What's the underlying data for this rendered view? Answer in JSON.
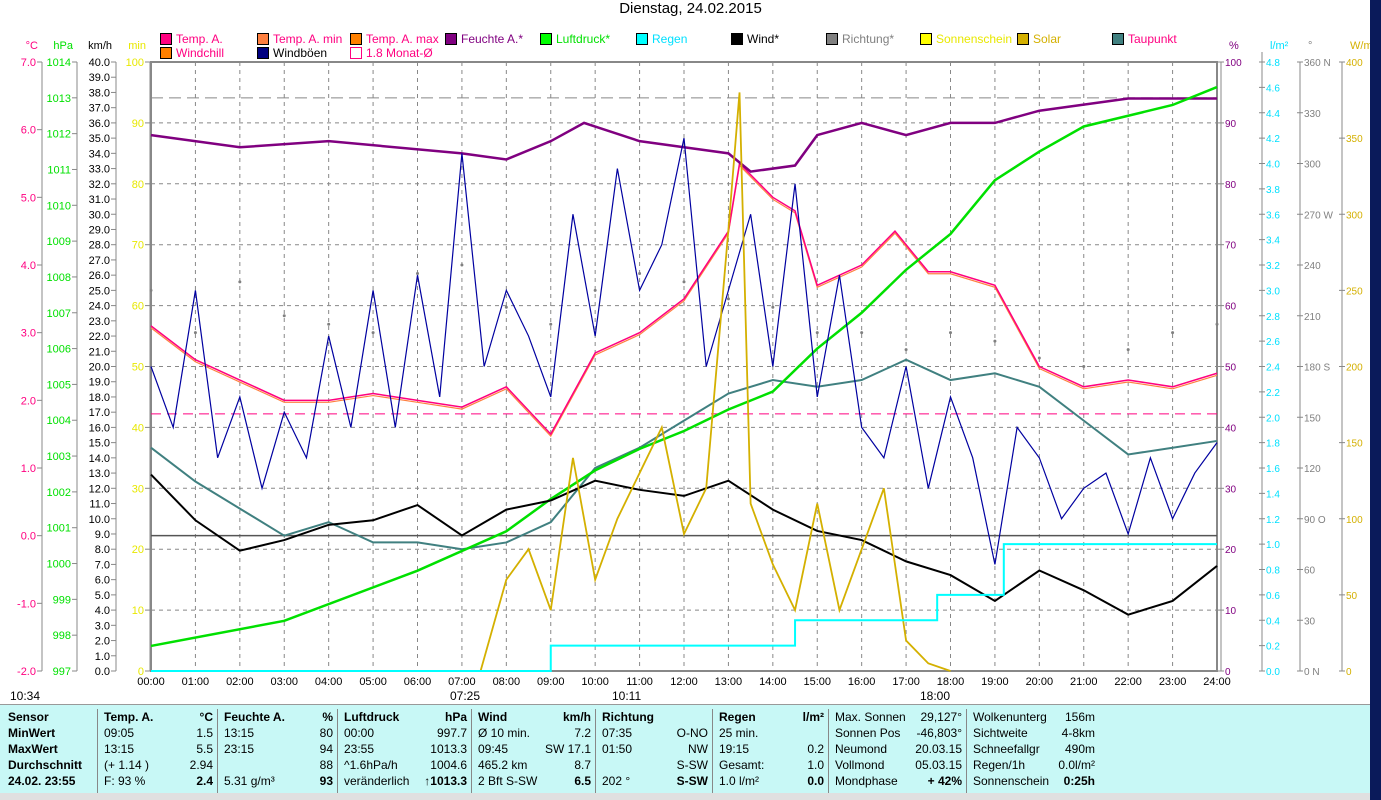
{
  "title": "Dienstag, 24.02.2015",
  "legend": [
    {
      "label": "Temp. A.",
      "color": "#ff0080",
      "text": "#ff0080"
    },
    {
      "label": "Temp. A. min",
      "color": "#ff8040",
      "text": "#ff0080"
    },
    {
      "label": "Temp. A. max",
      "color": "#ff8000",
      "text": "#ff0080"
    },
    {
      "label": "Feuchte A.*",
      "color": "#800080",
      "text": "#800080"
    },
    {
      "label": "Luftdruck*",
      "color": "#00ff00",
      "text": "#00e000"
    },
    {
      "label": "Regen",
      "color": "#00ffff",
      "text": "#00e0ff"
    },
    {
      "label": "Wind*",
      "color": "#000000",
      "text": "#000"
    },
    {
      "label": "Richtung*",
      "color": "#808080",
      "text": "#808080"
    },
    {
      "label": "Sonnenschein",
      "color": "#ffff00",
      "text": "#e8e800"
    },
    {
      "label": "Solar",
      "color": "#d4b000",
      "text": "#d4b000"
    },
    {
      "label": "Taupunkt",
      "color": "#408080",
      "text": "#ff0080"
    },
    {
      "label": "Windchill",
      "color": "#ff8000",
      "text": "#ff0080"
    },
    {
      "label": "Windböen",
      "color": "#000080",
      "text": "#000"
    },
    {
      "label": "1.8 Monat-Ø",
      "color": "#ff0080",
      "text": "#ff0080"
    }
  ],
  "axes": {
    "left": [
      {
        "unit": "°C",
        "color": "#ff0080",
        "min": -2,
        "max": 7,
        "step": 1,
        "dec": 1
      },
      {
        "unit": "hPa",
        "color": "#00e000",
        "min": 997,
        "max": 1014,
        "step": 1,
        "dec": 0
      },
      {
        "unit": "km/h",
        "color": "#000",
        "min": 0,
        "max": 40,
        "step": 1,
        "dec": 1
      },
      {
        "unit": "min",
        "color": "#e8e800",
        "min": 0,
        "max": 100,
        "step": 10,
        "dec": 0
      }
    ],
    "right": [
      {
        "unit": "%",
        "color": "#800080",
        "min": 0,
        "max": 100,
        "step": 10,
        "dec": 0
      },
      {
        "unit": "l/m²",
        "color": "#00e0ff",
        "min": 0,
        "max": 4.8,
        "step": 0.2,
        "dec": 1
      },
      {
        "unit": "°",
        "color": "#808080",
        "min": 0,
        "max": 360,
        "step": 30,
        "dec": 0,
        "compass": {
          "0": "N",
          "90": "O",
          "180": "S",
          "270": "W",
          "360": "N"
        }
      },
      {
        "unit": "W/m²",
        "color": "#d4b000",
        "min": 0,
        "max": 400,
        "step": 50,
        "dec": 0
      }
    ]
  },
  "x_ticks": [
    "00:00",
    "01:00",
    "02:00",
    "03:00",
    "04:00",
    "05:00",
    "06:00",
    "07:00",
    "08:00",
    "09:00",
    "10:00",
    "11:00",
    "12:00",
    "13:00",
    "14:00",
    "15:00",
    "16:00",
    "17:00",
    "18:00",
    "19:00",
    "20:00",
    "21:00",
    "22:00",
    "23:00",
    "24:00"
  ],
  "markers": {
    "left_time": "10:34",
    "sunrise": "07:25",
    "noon": "10:11",
    "sunset": "18:00"
  },
  "chart_data": {
    "type": "line",
    "xlabel": "Uhrzeit",
    "xlim": [
      0,
      24
    ],
    "reference_lines": {
      "temp_month_avg": 1.8,
      "pressure_ref": 1013,
      "zero_temp": 0
    },
    "series": [
      {
        "name": "Temp. A.",
        "axis": "°C",
        "x": [
          0,
          1,
          2,
          3,
          4,
          5,
          6,
          7,
          8,
          9,
          10,
          11,
          12,
          13,
          13.25,
          14,
          14.5,
          15,
          16,
          16.75,
          17.5,
          18,
          19,
          20,
          21,
          22,
          23,
          24
        ],
        "y": [
          3.1,
          2.6,
          2.3,
          2.0,
          2.0,
          2.1,
          2.0,
          1.9,
          2.2,
          1.5,
          2.7,
          3.0,
          3.5,
          4.5,
          5.5,
          5.0,
          4.8,
          3.7,
          4.0,
          4.5,
          3.9,
          3.9,
          3.7,
          2.5,
          2.2,
          2.3,
          2.2,
          2.4
        ]
      },
      {
        "name": "Taupunkt",
        "axis": "°C",
        "x": [
          0,
          1,
          2,
          3,
          4,
          5,
          6,
          7,
          8,
          9,
          10,
          11,
          12,
          13,
          14,
          15,
          16,
          17,
          18,
          19,
          20,
          21,
          22,
          23,
          24
        ],
        "y": [
          1.3,
          0.8,
          0.4,
          0.0,
          0.2,
          -0.1,
          -0.1,
          -0.2,
          -0.1,
          0.2,
          1.0,
          1.3,
          1.7,
          2.1,
          2.3,
          2.2,
          2.3,
          2.6,
          2.3,
          2.4,
          2.2,
          1.7,
          1.2,
          1.3,
          1.4
        ]
      },
      {
        "name": "Feuchte A.",
        "axis": "%",
        "x": [
          0,
          2,
          4,
          7,
          8,
          9,
          9.75,
          11,
          12,
          13,
          13.5,
          14.5,
          15,
          16,
          17,
          18,
          19,
          20,
          21,
          22,
          24
        ],
        "y": [
          88,
          86,
          87,
          85,
          84,
          87,
          90,
          87,
          86,
          85,
          82,
          83,
          88,
          90,
          88,
          90,
          90,
          92,
          93,
          94,
          94
        ]
      },
      {
        "name": "Luftdruck",
        "axis": "hPa",
        "x": [
          0,
          3,
          6,
          8,
          9,
          10,
          11,
          12,
          13,
          14,
          15,
          16,
          17,
          18,
          19,
          20,
          21,
          22,
          23,
          24
        ],
        "y": [
          997.7,
          998.4,
          999.8,
          1000.9,
          1001.8,
          1002.6,
          1003.2,
          1003.7,
          1004.3,
          1004.8,
          1006.0,
          1007.0,
          1008.2,
          1009.2,
          1010.7,
          1011.5,
          1012.2,
          1012.5,
          1012.8,
          1013.3
        ]
      },
      {
        "name": "Wind",
        "axis": "km/h",
        "x": [
          0,
          1,
          2,
          3,
          4,
          5,
          6,
          7,
          8,
          9,
          10,
          11,
          12,
          13,
          14,
          15,
          16,
          17,
          18,
          19,
          20,
          21,
          22,
          23,
          24
        ],
        "y": [
          12.9,
          9.9,
          7.9,
          8.6,
          9.6,
          9.9,
          10.9,
          8.9,
          10.6,
          11.2,
          12.5,
          11.9,
          11.5,
          12.5,
          10.6,
          9.2,
          8.6,
          7.2,
          6.3,
          4.6,
          6.6,
          5.3,
          3.7,
          4.6,
          6.9
        ]
      },
      {
        "name": "Windböen",
        "axis": "km/h",
        "x": [
          0,
          0.5,
          1,
          1.5,
          2,
          2.5,
          3,
          3.5,
          4,
          4.5,
          5,
          5.5,
          6,
          6.5,
          7,
          7.5,
          8,
          8.5,
          9,
          9.5,
          10,
          10.5,
          11,
          11.5,
          12,
          12.5,
          13,
          13.5,
          14,
          14.5,
          15,
          15.5,
          16,
          16.5,
          17,
          17.5,
          18,
          18.5,
          19,
          19.5,
          20,
          20.5,
          21,
          21.5,
          22,
          22.5,
          23,
          23.5,
          24
        ],
        "y": [
          20,
          16,
          25,
          14,
          18,
          12,
          17,
          14,
          22,
          16,
          25,
          16,
          26,
          18,
          34,
          20,
          25,
          22,
          18,
          30,
          22,
          33,
          25,
          28,
          35,
          20,
          25,
          30,
          20,
          32,
          18,
          26,
          16,
          14,
          20,
          12,
          18,
          14,
          7,
          16,
          14,
          10,
          12,
          13,
          9,
          14,
          10,
          13,
          15
        ]
      },
      {
        "name": "Richtung",
        "axis": "°",
        "x": [
          0,
          1,
          2,
          3,
          4,
          5,
          6,
          7,
          8,
          9,
          10,
          11,
          12,
          13,
          14,
          15,
          16,
          17,
          18,
          19,
          20,
          21,
          22,
          23,
          24
        ],
        "y": [
          225,
          200,
          230,
          210,
          205,
          200,
          235,
          240,
          215,
          205,
          225,
          235,
          230,
          220,
          215,
          200,
          200,
          190,
          200,
          195,
          185,
          180,
          190,
          200,
          205
        ]
      },
      {
        "name": "Solar",
        "axis": "W/m²",
        "x": [
          7.42,
          8,
          8.5,
          9,
          9.5,
          10,
          10.5,
          11,
          11.5,
          12,
          12.5,
          13,
          13.25,
          13.5,
          14,
          14.5,
          15,
          15.5,
          16,
          16.5,
          17,
          17.5,
          18
        ],
        "y": [
          0,
          60,
          80,
          40,
          140,
          60,
          100,
          130,
          160,
          90,
          120,
          290,
          380,
          110,
          70,
          40,
          110,
          40,
          80,
          120,
          20,
          5,
          0
        ]
      },
      {
        "name": "Regen",
        "axis": "l/m²",
        "x": [
          0,
          9,
          9,
          14.5,
          14.5,
          17.7,
          17.7,
          19.2,
          19.2,
          24
        ],
        "y": [
          0,
          0,
          0.2,
          0.2,
          0.4,
          0.4,
          0.6,
          0.6,
          1.0,
          1.0
        ]
      }
    ]
  },
  "table": [
    {
      "head": [
        "Sensor",
        ""
      ],
      "rows": [
        [
          "MinWert",
          ""
        ],
        [
          "MaxWert",
          ""
        ],
        [
          "Durchschnitt",
          ""
        ],
        [
          "24.02. 23:55",
          ""
        ]
      ]
    },
    {
      "head": [
        "Temp. A.",
        "°C"
      ],
      "rows": [
        [
          "09:05",
          "1.5"
        ],
        [
          "13:15",
          "5.5"
        ],
        [
          "(+ 1.14 )",
          "2.94"
        ],
        [
          "F: 93 %",
          "2.4"
        ]
      ]
    },
    {
      "head": [
        "Feuchte A.",
        "%"
      ],
      "rows": [
        [
          "13:15",
          "80"
        ],
        [
          "23:15",
          "94"
        ],
        [
          "",
          "88"
        ],
        [
          "5.31 g/m³",
          "93"
        ]
      ]
    },
    {
      "head": [
        "Luftdruck",
        "hPa"
      ],
      "rows": [
        [
          "00:00",
          "997.7"
        ],
        [
          "23:55",
          "1013.3"
        ],
        [
          "^1.6hPa/h",
          "1004.6"
        ],
        [
          "veränderlich",
          "↑1013.3"
        ]
      ]
    },
    {
      "head": [
        "Wind",
        "km/h"
      ],
      "rows": [
        [
          "Ø 10 min.",
          "7.2"
        ],
        [
          "09:45",
          "SW 17.1"
        ],
        [
          "465.2 km",
          "8.7"
        ],
        [
          "2 Bft S-SW",
          "6.5"
        ]
      ]
    },
    {
      "head": [
        "Richtung",
        ""
      ],
      "rows": [
        [
          "07:35",
          "O-NO"
        ],
        [
          "01:50",
          "NW"
        ],
        [
          "",
          "S-SW"
        ],
        [
          "202 °",
          "S-SW"
        ]
      ]
    },
    {
      "head": [
        "Regen",
        "l/m²"
      ],
      "rows": [
        [
          "25 min.",
          ""
        ],
        [
          "19:15",
          "0.2"
        ],
        [
          "Gesamt:",
          "1.0"
        ],
        [
          "1.0 l/m²",
          "0.0"
        ]
      ]
    },
    {
      "head": [
        "Max. Sonnen",
        "29,127°"
      ],
      "rows": [
        [
          "Sonnen Pos",
          "-46,803°"
        ],
        [
          "Neumond",
          "20.03.15"
        ],
        [
          "Vollmond",
          "05.03.15"
        ],
        [
          "Mondphase",
          "+ 42%"
        ]
      ]
    },
    {
      "head": [
        "Wolkenunterg",
        "156m"
      ],
      "rows": [
        [
          "Sichtweite",
          "4-8km"
        ],
        [
          "Schneefallgr",
          "490m"
        ],
        [
          "Regen/1h",
          "0.0l/m²"
        ],
        [
          "Sonnenschein",
          "0:25h"
        ]
      ]
    }
  ]
}
